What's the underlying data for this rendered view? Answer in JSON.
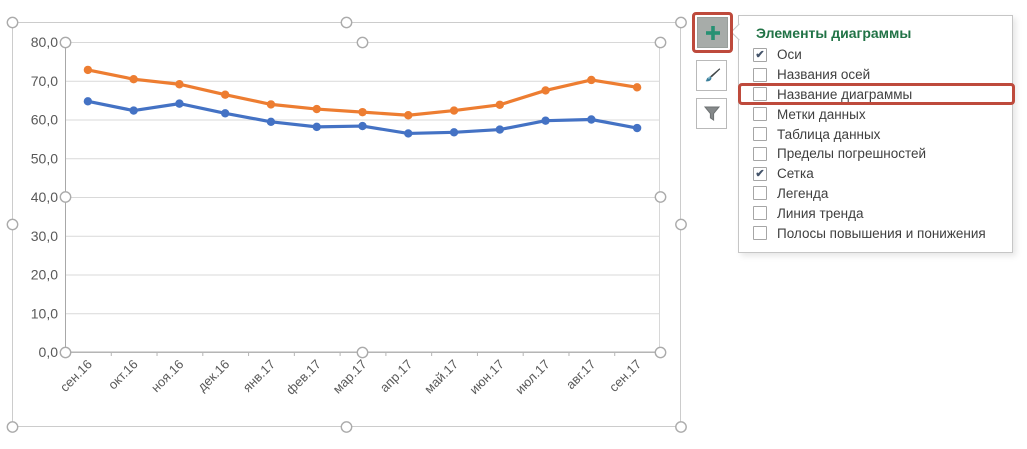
{
  "chart_data": {
    "type": "line",
    "title": "",
    "xlabel": "",
    "ylabel": "",
    "categories": [
      "сен.16",
      "окт.16",
      "ноя.16",
      "дек.16",
      "янв.17",
      "фев.17",
      "мар.17",
      "апр.17",
      "май.17",
      "июн.17",
      "июл.17",
      "авг.17",
      "сен.17"
    ],
    "series": [
      {
        "name": "orange-series",
        "color": "#ED7D31",
        "values": [
          72.8,
          70.4,
          69.1,
          66.4,
          63.9,
          62.7,
          61.9,
          61.1,
          62.3,
          63.8,
          67.5,
          70.2,
          68.3
        ]
      },
      {
        "name": "blue-series",
        "color": "#4472C4",
        "values": [
          64.7,
          62.3,
          64.1,
          61.6,
          59.4,
          58.1,
          58.3,
          56.4,
          56.7,
          57.4,
          59.7,
          60.0,
          57.8
        ]
      }
    ],
    "ylim": [
      0,
      80
    ],
    "y_ticks": [
      "0,0",
      "10,0",
      "20,0",
      "30,0",
      "40,0",
      "50,0",
      "60,0",
      "70,0",
      "80,0"
    ],
    "grid": true,
    "legend": "none",
    "x_label_rotation": -45,
    "gridline_color": "#D9D9D9",
    "axis_color": "#B5B5B5",
    "tick_label_color": "#595959",
    "selection_handle_color": "#ABABAB"
  },
  "chart_tools": {
    "add_button": {
      "icon": "plus-icon",
      "plus_color": "#279173"
    },
    "style_button": {
      "icon": "brush-icon"
    },
    "filter_button": {
      "icon": "funnel-icon"
    }
  },
  "elements_panel": {
    "title": "Элементы диаграммы",
    "title_color": "#217346",
    "check_glyph": "✔",
    "items": [
      {
        "label": "Оси",
        "checked": true,
        "highlighted": false
      },
      {
        "label": "Названия осей",
        "checked": false,
        "highlighted": false
      },
      {
        "label": "Название диаграммы",
        "checked": false,
        "highlighted": true
      },
      {
        "label": "Метки данных",
        "checked": false,
        "highlighted": false
      },
      {
        "label": "Таблица данных",
        "checked": false,
        "highlighted": false
      },
      {
        "label": "Пределы погрешностей",
        "checked": false,
        "highlighted": false
      },
      {
        "label": "Сетка",
        "checked": true,
        "highlighted": false
      },
      {
        "label": "Легенда",
        "checked": false,
        "highlighted": false
      },
      {
        "label": "Линия тренда",
        "checked": false,
        "highlighted": false
      },
      {
        "label": "Полосы повышения и понижения",
        "checked": false,
        "highlighted": false
      }
    ]
  },
  "annotations": {
    "highlight_color": "#BE4A3C"
  }
}
